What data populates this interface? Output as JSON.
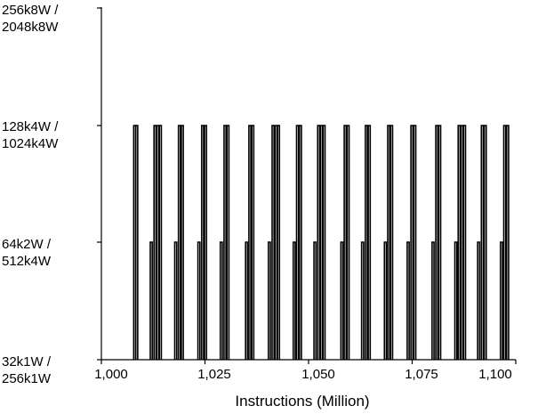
{
  "chart_data": {
    "type": "line",
    "title": "",
    "xlabel": "Instructions (Million)",
    "ylabel": "",
    "xlim": [
      1000,
      1100
    ],
    "x_ticks": [
      "1,000",
      "1,025",
      "1,050",
      "1,075",
      "1,100"
    ],
    "y_ticks": [
      {
        "line1": "32k1W /",
        "line2": "256k1W"
      },
      {
        "line1": "64k2W /",
        "line2": "512k4W"
      },
      {
        "line1": "128k4W /",
        "line2": "1024k4W"
      },
      {
        "line1": "256k8W /",
        "line2": "2048k8W"
      }
    ],
    "grid": false,
    "legend": "none",
    "series": [
      {
        "color": "#000000",
        "spikes": [
          {
            "x": 1007.8,
            "level": 2
          },
          {
            "x": 1008.3,
            "level": 2
          },
          {
            "x": 1011.8,
            "level": 1
          },
          {
            "x": 1012.7,
            "level": 2
          },
          {
            "x": 1013.4,
            "level": 2
          },
          {
            "x": 1014.0,
            "level": 2
          },
          {
            "x": 1017.7,
            "level": 1
          },
          {
            "x": 1018.6,
            "level": 2
          },
          {
            "x": 1019.3,
            "level": 2
          },
          {
            "x": 1023.3,
            "level": 1
          },
          {
            "x": 1024.2,
            "level": 2
          },
          {
            "x": 1024.9,
            "level": 2
          },
          {
            "x": 1028.7,
            "level": 1
          },
          {
            "x": 1029.6,
            "level": 2
          },
          {
            "x": 1030.3,
            "level": 2
          },
          {
            "x": 1034.8,
            "level": 1
          },
          {
            "x": 1035.6,
            "level": 2
          },
          {
            "x": 1036.3,
            "level": 2
          },
          {
            "x": 1040.3,
            "level": 1
          },
          {
            "x": 1041.2,
            "level": 2
          },
          {
            "x": 1041.9,
            "level": 2
          },
          {
            "x": 1042.5,
            "level": 2
          },
          {
            "x": 1046.3,
            "level": 1
          },
          {
            "x": 1047.1,
            "level": 2
          },
          {
            "x": 1047.8,
            "level": 2
          },
          {
            "x": 1051.3,
            "level": 1
          },
          {
            "x": 1052.2,
            "level": 2
          },
          {
            "x": 1052.9,
            "level": 2
          },
          {
            "x": 1053.5,
            "level": 2
          },
          {
            "x": 1057.8,
            "level": 1
          },
          {
            "x": 1058.6,
            "level": 2
          },
          {
            "x": 1059.3,
            "level": 2
          },
          {
            "x": 1062.8,
            "level": 1
          },
          {
            "x": 1063.7,
            "level": 2
          },
          {
            "x": 1064.4,
            "level": 2
          },
          {
            "x": 1068.3,
            "level": 1
          },
          {
            "x": 1069.1,
            "level": 2
          },
          {
            "x": 1069.8,
            "level": 2
          },
          {
            "x": 1073.8,
            "level": 1
          },
          {
            "x": 1074.7,
            "level": 2
          },
          {
            "x": 1075.4,
            "level": 2
          },
          {
            "x": 1079.8,
            "level": 1
          },
          {
            "x": 1080.7,
            "level": 2
          },
          {
            "x": 1081.4,
            "level": 2
          },
          {
            "x": 1085.3,
            "level": 1
          },
          {
            "x": 1086.1,
            "level": 2
          },
          {
            "x": 1086.8,
            "level": 2
          },
          {
            "x": 1087.4,
            "level": 2
          },
          {
            "x": 1090.8,
            "level": 1
          },
          {
            "x": 1091.7,
            "level": 2
          },
          {
            "x": 1092.4,
            "level": 2
          },
          {
            "x": 1096.3,
            "level": 1
          },
          {
            "x": 1097.1,
            "level": 2
          },
          {
            "x": 1097.8,
            "level": 2
          }
        ]
      }
    ]
  }
}
